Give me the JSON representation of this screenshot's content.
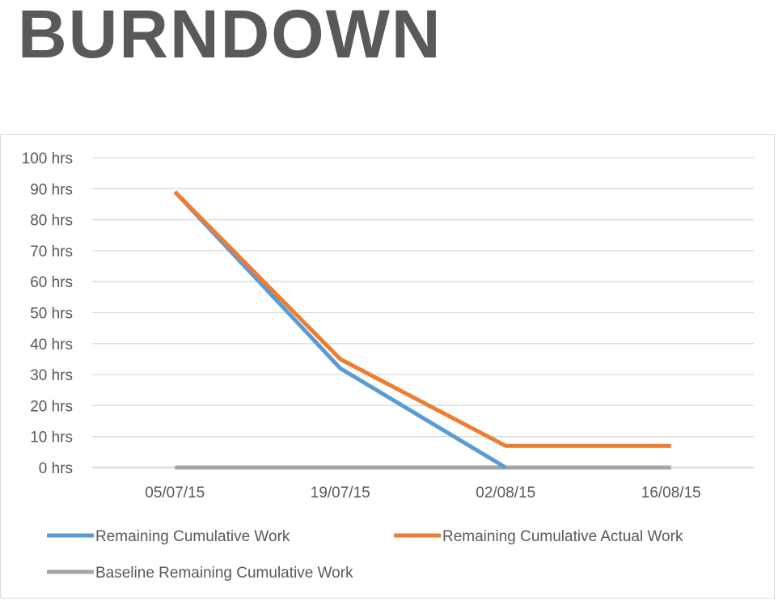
{
  "title": "BURNDOWN",
  "chart_data": {
    "type": "line",
    "title": "BURNDOWN",
    "categories": [
      "05/07/15",
      "19/07/15",
      "02/08/15",
      "16/08/15"
    ],
    "yticks": [
      "0 hrs",
      "10 hrs",
      "20 hrs",
      "30 hrs",
      "40 hrs",
      "50 hrs",
      "60 hrs",
      "70 hrs",
      "80 hrs",
      "90 hrs",
      "100 hrs"
    ],
    "ylim": [
      0,
      100
    ],
    "grid": true,
    "legend_position": "bottom",
    "series": [
      {
        "name": "Remaining Cumulative Work",
        "values": [
          89,
          32,
          0,
          null
        ],
        "color": "#5b9bd5"
      },
      {
        "name": "Remaining Cumulative Actual Work",
        "values": [
          89,
          35,
          7,
          7
        ],
        "color": "#ed7d31"
      },
      {
        "name": "Baseline Remaining Cumulative Work",
        "values": [
          0,
          0,
          0,
          0
        ],
        "color": "#a5a5a5"
      }
    ]
  }
}
